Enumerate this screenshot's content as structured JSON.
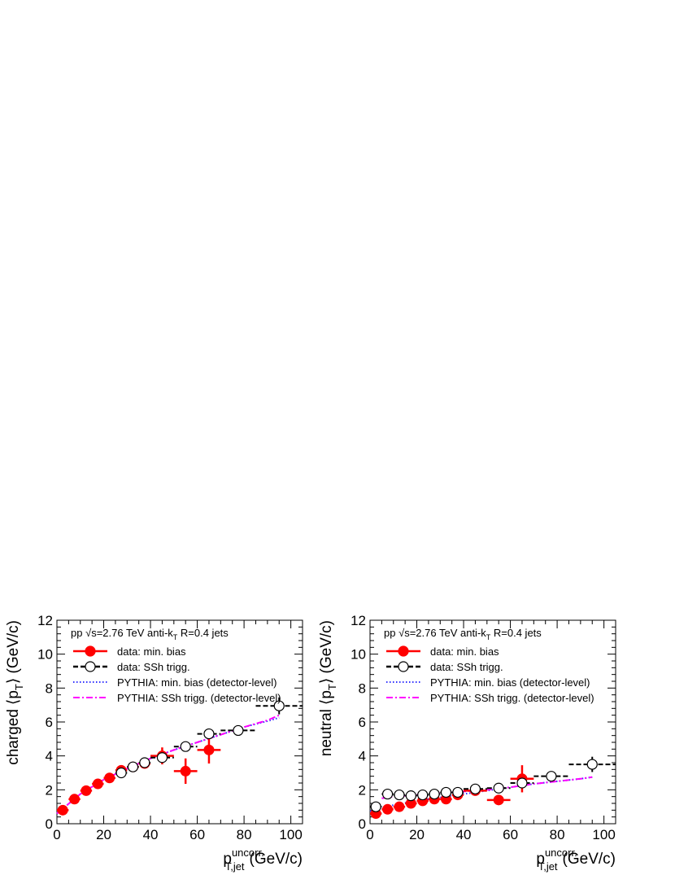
{
  "chart_data": [
    {
      "type": "scatter",
      "panel": "charged",
      "title": "",
      "ylabel_prefix": "charged",
      "ylabel": "⟨p",
      "ylabel_sub": "T",
      "ylabel_suffix": "⟩ (GeV/c)",
      "xlabel": "p",
      "xlabel_sup": "uncorr.",
      "xlabel_sub": "T,jet",
      "xlabel_suffix": "(GeV/c)",
      "xlim": [
        0,
        105
      ],
      "ylim": [
        0,
        12
      ],
      "x_ticks": [
        "0",
        "20",
        "40",
        "60",
        "80",
        "100"
      ],
      "y_ticks": [
        "0",
        "2",
        "4",
        "6",
        "8",
        "10",
        "12"
      ],
      "annotation": {
        "pre": "pp √s=2.76 TeV anti-k",
        "sub": "T",
        "post": " R=0.4 jets"
      },
      "legend": {
        "placement": "top-left",
        "entries": [
          "data: min. bias",
          "data: SSh trigg.",
          "PYTHIA: min. bias (detector-level)",
          "PYTHIA: SSh trigg. (detector-level)"
        ]
      },
      "series": [
        {
          "name": "data: min. bias",
          "style": "filled-circle",
          "color": "#ff0000",
          "points": [
            {
              "x": 2.5,
              "y": 0.8,
              "xerr": 2.5,
              "yerr": 0.1
            },
            {
              "x": 7.5,
              "y": 1.45,
              "xerr": 2.5,
              "yerr": 0.1
            },
            {
              "x": 12.5,
              "y": 1.95,
              "xerr": 2.5,
              "yerr": 0.1
            },
            {
              "x": 17.5,
              "y": 2.35,
              "xerr": 2.5,
              "yerr": 0.1
            },
            {
              "x": 22.5,
              "y": 2.7,
              "xerr": 2.5,
              "yerr": 0.1
            },
            {
              "x": 27.5,
              "y": 3.15,
              "xerr": 2.5,
              "yerr": 0.15
            },
            {
              "x": 32.5,
              "y": 3.35,
              "xerr": 2.5,
              "yerr": 0.2
            },
            {
              "x": 37.5,
              "y": 3.55,
              "xerr": 2.5,
              "yerr": 0.25
            },
            {
              "x": 45,
              "y": 4.0,
              "xerr": 5,
              "yerr": 0.5
            },
            {
              "x": 55,
              "y": 3.1,
              "xerr": 5,
              "yerr": 0.75
            },
            {
              "x": 65,
              "y": 4.35,
              "xerr": 5,
              "yerr": 0.8
            }
          ]
        },
        {
          "name": "data: SSh trigg.",
          "style": "open-circle",
          "color": "#000000",
          "points": [
            {
              "x": 27.5,
              "y": 3.0,
              "xerr": 2.5,
              "yerr": 0.1
            },
            {
              "x": 32.5,
              "y": 3.35,
              "xerr": 2.5,
              "yerr": 0.1
            },
            {
              "x": 37.5,
              "y": 3.6,
              "xerr": 2.5,
              "yerr": 0.1
            },
            {
              "x": 45,
              "y": 3.9,
              "xerr": 5,
              "yerr": 0.15
            },
            {
              "x": 55,
              "y": 4.55,
              "xerr": 5,
              "yerr": 0.2
            },
            {
              "x": 65,
              "y": 5.3,
              "xerr": 5,
              "yerr": 0.25
            },
            {
              "x": 77.5,
              "y": 5.5,
              "xerr": 7.5,
              "yerr": 0.3
            },
            {
              "x": 95,
              "y": 6.95,
              "xerr": 10,
              "yerr": 0.5
            }
          ]
        },
        {
          "name": "PYTHIA: min. bias (detector-level)",
          "style": "dotted-line",
          "color": "#3333ff",
          "x": [
            0,
            10,
            20,
            30,
            40,
            50,
            60,
            70,
            80,
            90,
            95
          ],
          "y": [
            0.6,
            1.75,
            2.6,
            3.25,
            3.85,
            4.35,
            4.8,
            5.25,
            5.7,
            6.05,
            6.25
          ]
        },
        {
          "name": "PYTHIA: SSh trigg. (detector-level)",
          "style": "dashdot-line",
          "color": "#ff00ff",
          "x": [
            0,
            10,
            20,
            30,
            40,
            50,
            60,
            70,
            80,
            90,
            95
          ],
          "y": [
            0.6,
            1.75,
            2.6,
            3.25,
            3.85,
            4.35,
            4.8,
            5.25,
            5.7,
            6.1,
            6.4
          ]
        }
      ]
    },
    {
      "type": "scatter",
      "panel": "neutral",
      "title": "",
      "ylabel_prefix": "neutral",
      "ylabel": "⟨p",
      "ylabel_sub": "T",
      "ylabel_suffix": "⟩ (GeV/c)",
      "xlabel": "p",
      "xlabel_sup": "uncorr.",
      "xlabel_sub": "T,jet",
      "xlabel_suffix": "(GeV/c)",
      "xlim": [
        0,
        105
      ],
      "ylim": [
        0,
        12
      ],
      "x_ticks": [
        "0",
        "20",
        "40",
        "60",
        "80",
        "100"
      ],
      "y_ticks": [
        "0",
        "2",
        "4",
        "6",
        "8",
        "10",
        "12"
      ],
      "annotation": {
        "pre": "pp √s=2.76 TeV anti-k",
        "sub": "T",
        "post": " R=0.4 jets"
      },
      "legend": {
        "placement": "top-left",
        "entries": [
          "data: min. bias",
          "data: SSh trigg.",
          "PYTHIA: min. bias (detector-level)",
          "PYTHIA: SSh trigg. (detector-level)"
        ]
      },
      "series": [
        {
          "name": "data: min. bias",
          "style": "filled-circle",
          "color": "#ff0000",
          "points": [
            {
              "x": 2.5,
              "y": 0.6,
              "xerr": 2.5,
              "yerr": 0.1
            },
            {
              "x": 7.5,
              "y": 0.85,
              "xerr": 2.5,
              "yerr": 0.1
            },
            {
              "x": 12.5,
              "y": 1.0,
              "xerr": 2.5,
              "yerr": 0.1
            },
            {
              "x": 17.5,
              "y": 1.2,
              "xerr": 2.5,
              "yerr": 0.1
            },
            {
              "x": 22.5,
              "y": 1.35,
              "xerr": 2.5,
              "yerr": 0.1
            },
            {
              "x": 27.5,
              "y": 1.45,
              "xerr": 2.5,
              "yerr": 0.1
            },
            {
              "x": 32.5,
              "y": 1.45,
              "xerr": 2.5,
              "yerr": 0.15
            },
            {
              "x": 37.5,
              "y": 1.7,
              "xerr": 2.5,
              "yerr": 0.2
            },
            {
              "x": 45,
              "y": 1.95,
              "xerr": 5,
              "yerr": 0.25
            },
            {
              "x": 55,
              "y": 1.4,
              "xerr": 5,
              "yerr": 0.25
            },
            {
              "x": 65,
              "y": 2.65,
              "xerr": 5,
              "yerr": 0.8
            }
          ]
        },
        {
          "name": "data: SSh trigg.",
          "style": "open-circle",
          "color": "#000000",
          "points": [
            {
              "x": 2.5,
              "y": 1.0,
              "xerr": 2.5,
              "yerr": 0.1
            },
            {
              "x": 7.5,
              "y": 1.75,
              "xerr": 2.5,
              "yerr": 0.1
            },
            {
              "x": 12.5,
              "y": 1.7,
              "xerr": 2.5,
              "yerr": 0.1
            },
            {
              "x": 17.5,
              "y": 1.65,
              "xerr": 2.5,
              "yerr": 0.1
            },
            {
              "x": 22.5,
              "y": 1.7,
              "xerr": 2.5,
              "yerr": 0.1
            },
            {
              "x": 27.5,
              "y": 1.75,
              "xerr": 2.5,
              "yerr": 0.1
            },
            {
              "x": 32.5,
              "y": 1.85,
              "xerr": 2.5,
              "yerr": 0.1
            },
            {
              "x": 37.5,
              "y": 1.85,
              "xerr": 2.5,
              "yerr": 0.1
            },
            {
              "x": 45,
              "y": 2.05,
              "xerr": 5,
              "yerr": 0.1
            },
            {
              "x": 55,
              "y": 2.1,
              "xerr": 5,
              "yerr": 0.15
            },
            {
              "x": 65,
              "y": 2.4,
              "xerr": 5,
              "yerr": 0.2
            },
            {
              "x": 77.5,
              "y": 2.8,
              "xerr": 7.5,
              "yerr": 0.25
            },
            {
              "x": 95,
              "y": 3.5,
              "xerr": 10,
              "yerr": 0.45
            }
          ]
        },
        {
          "name": "PYTHIA: min. bias (detector-level)",
          "style": "dotted-line",
          "color": "#3333ff",
          "x": [
            0,
            10,
            20,
            30,
            40,
            50,
            60,
            70,
            80,
            90,
            95
          ],
          "y": [
            0.75,
            1.1,
            1.35,
            1.55,
            1.75,
            1.95,
            2.15,
            2.35,
            2.5,
            2.65,
            2.75
          ]
        },
        {
          "name": "PYTHIA: SSh trigg. (detector-level)",
          "style": "dashdot-line",
          "color": "#ff00ff",
          "x": [
            5,
            10,
            20,
            30,
            40,
            50,
            60,
            70,
            80,
            90,
            95
          ],
          "y": [
            1.5,
            1.6,
            1.7,
            1.8,
            1.9,
            2.0,
            2.15,
            2.35,
            2.5,
            2.65,
            2.75
          ]
        }
      ]
    }
  ]
}
